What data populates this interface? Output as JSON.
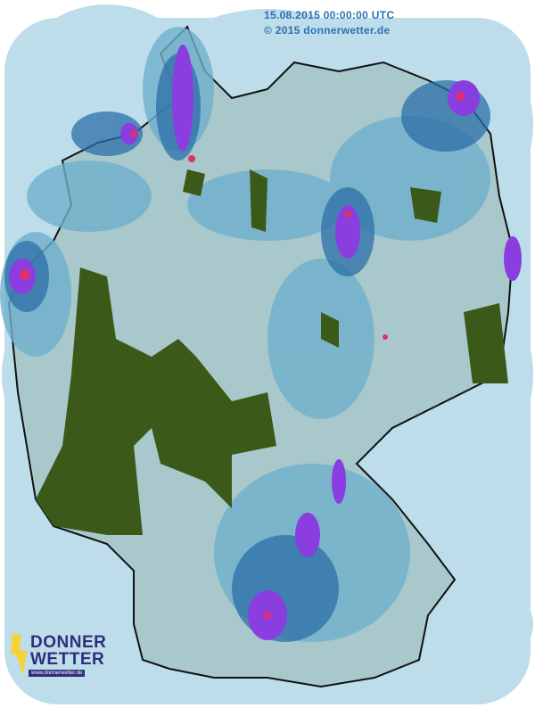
{
  "header": {
    "timestamp": "15.08.2015 00:00:00 UTC",
    "copyright": "© 2015 donnerwetter.de"
  },
  "logo": {
    "line1": "DONNER",
    "line2": "WETTER",
    "url": "www.donnerwetter.de"
  },
  "colors": {
    "background": "#bcdde9",
    "land": "#a9c8cc",
    "light_rain": "#5fa9c9",
    "moderate_rain": "#2c6fa8",
    "heavy_rain": "#8a3ee0",
    "very_heavy_rain": "#e0306a",
    "clutter": "#3b5a1a",
    "brand": "#2e2e7a",
    "brand_bolt": "#f5d23a",
    "stamp_text": "#2f6fb5"
  }
}
